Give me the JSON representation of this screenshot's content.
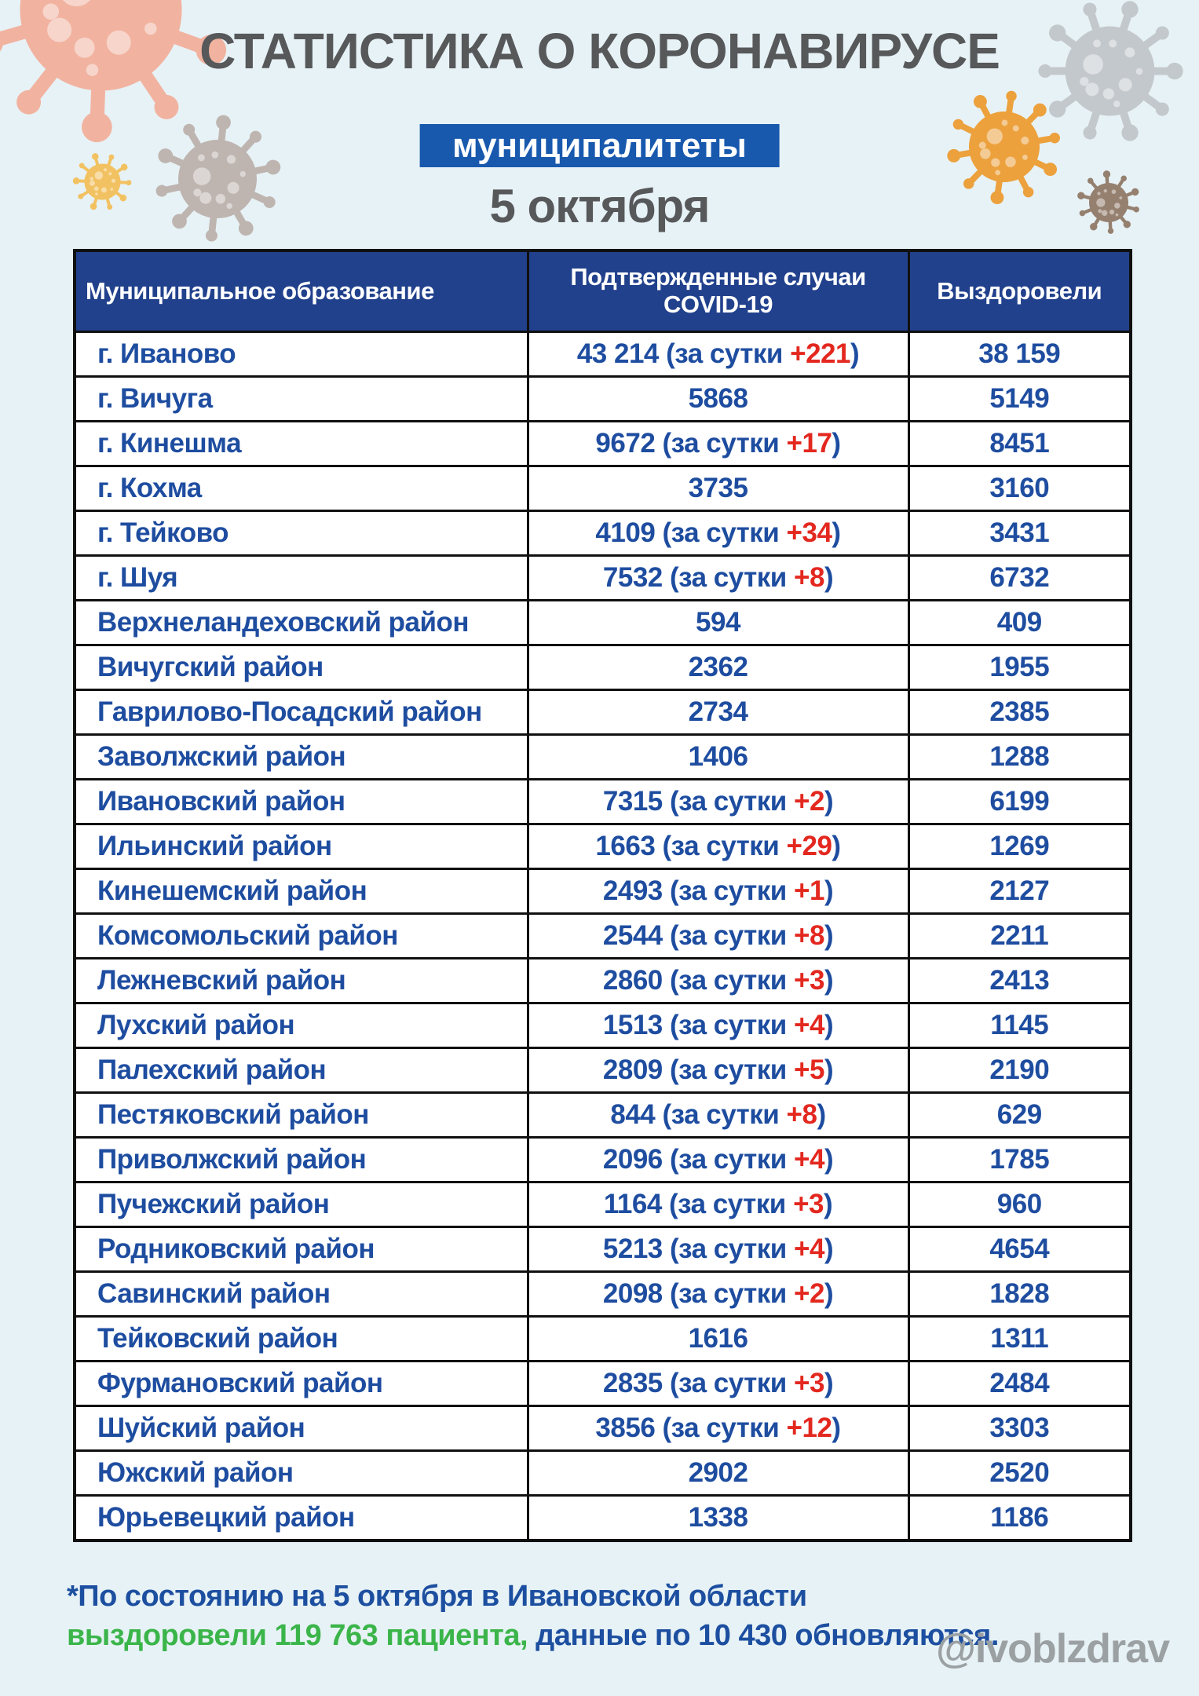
{
  "page": {
    "title": "СТАТИСТИКА О КОРОНАВИРУСЕ",
    "badge": "муниципалитеты",
    "date": "5 октября",
    "handle": "@ivoblzdrav"
  },
  "table": {
    "headers": [
      "Муниципальное образование",
      "Подтвержденные случаи COVID-19",
      "Выздоровели"
    ],
    "daily_label": "за сутки",
    "rows": [
      {
        "name": "г. Иваново",
        "cases": "43 214",
        "delta": "+221",
        "recovered": "38 159"
      },
      {
        "name": "г. Вичуга",
        "cases": "5868",
        "delta": null,
        "recovered": "5149"
      },
      {
        "name": "г. Кинешма",
        "cases": "9672",
        "delta": "+17",
        "recovered": "8451"
      },
      {
        "name": "г. Кохма",
        "cases": "3735",
        "delta": null,
        "recovered": "3160"
      },
      {
        "name": "г. Тейково",
        "cases": "4109",
        "delta": "+34",
        "recovered": "3431"
      },
      {
        "name": "г. Шуя",
        "cases": "7532",
        "delta": "+8",
        "recovered": "6732"
      },
      {
        "name": "Верхнеландеховский район",
        "cases": "594",
        "delta": null,
        "recovered": "409"
      },
      {
        "name": "Вичугский район",
        "cases": "2362",
        "delta": null,
        "recovered": "1955"
      },
      {
        "name": "Гаврилово-Посадский район",
        "cases": "2734",
        "delta": null,
        "recovered": "2385"
      },
      {
        "name": "Заволжский район",
        "cases": "1406",
        "delta": null,
        "recovered": "1288"
      },
      {
        "name": "Ивановский район",
        "cases": "7315",
        "delta": "+2",
        "recovered": "6199"
      },
      {
        "name": "Ильинский район",
        "cases": "1663",
        "delta": "+29",
        "recovered": "1269"
      },
      {
        "name": "Кинешемский район",
        "cases": "2493",
        "delta": "+1",
        "recovered": "2127"
      },
      {
        "name": "Комсомольский район",
        "cases": "2544",
        "delta": "+8",
        "recovered": "2211"
      },
      {
        "name": "Лежневский район",
        "cases": "2860",
        "delta": "+3",
        "recovered": "2413"
      },
      {
        "name": "Лухский район",
        "cases": "1513",
        "delta": "+4",
        "recovered": "1145"
      },
      {
        "name": "Палехский район",
        "cases": "2809",
        "delta": "+5",
        "recovered": "2190"
      },
      {
        "name": "Пестяковский район",
        "cases": "844",
        "delta": "+8",
        "recovered": "629"
      },
      {
        "name": "Приволжский район",
        "cases": "2096",
        "delta": "+4",
        "recovered": "1785"
      },
      {
        "name": "Пучежский район",
        "cases": "1164",
        "delta": "+3",
        "recovered": "960"
      },
      {
        "name": "Родниковский район",
        "cases": "5213",
        "delta": "+4",
        "recovered": "4654"
      },
      {
        "name": "Савинский район",
        "cases": "2098",
        "delta": "+2",
        "recovered": "1828"
      },
      {
        "name": "Тейковский район",
        "cases": "1616",
        "delta": null,
        "recovered": "1311"
      },
      {
        "name": "Фурмановский район",
        "cases": "2835",
        "delta": "+3",
        "recovered": "2484"
      },
      {
        "name": "Шуйский район",
        "cases": "3856",
        "delta": "+12",
        "recovered": "3303"
      },
      {
        "name": "Южский район",
        "cases": "2902",
        "delta": null,
        "recovered": "2520"
      },
      {
        "name": "Юрьевецкий район",
        "cases": "1338",
        "delta": null,
        "recovered": "1186"
      }
    ]
  },
  "footer": {
    "line1": "*По состоянию на 5 октября в Ивановской области",
    "line2_green": "выздоровели 119 763 пациента,",
    "line2_rest": " данные по 10 430 обновляются."
  },
  "colors": {
    "background": "#e7f2f6",
    "title_gray": "#57585a",
    "badge_blue": "#1859ae",
    "header_blue": "#21418c",
    "text_blue": "#1e4da0",
    "delta_red": "#e3281f",
    "green": "#3bb54a",
    "handle_gray": "#9ba0a3",
    "border_black": "#101010"
  },
  "decorations": {
    "virus_salmon": {
      "icon": "virus-icon",
      "color": "#f1b3a0"
    },
    "virus_gray_left": {
      "icon": "virus-icon",
      "color": "#beb5b0"
    },
    "virus_yellow": {
      "icon": "virus-icon",
      "color": "#f2c262"
    },
    "virus_gray_right": {
      "icon": "virus-icon",
      "color": "#c3c8cc"
    },
    "virus_orange": {
      "icon": "virus-icon",
      "color": "#eca13d"
    },
    "virus_brown": {
      "icon": "virus-icon",
      "color": "#95806f"
    }
  },
  "chart_data": {
    "type": "table",
    "title": "СТАТИСТИКА О КОРОНАВИРУСЕ",
    "subtitle": "муниципалитеты",
    "date": "5 октября",
    "columns": [
      "Муниципальное образование",
      "Подтвержденные случаи COVID-19",
      "Выздоровели"
    ],
    "categories": [
      "г. Иваново",
      "г. Вичуга",
      "г. Кинешма",
      "г. Кохма",
      "г. Тейково",
      "г. Шуя",
      "Верхнеландеховский район",
      "Вичугский район",
      "Гаврилово-Посадский район",
      "Заволжский район",
      "Ивановский район",
      "Ильинский район",
      "Кинешемский район",
      "Комсомольский район",
      "Лежневский район",
      "Лухский район",
      "Палехский район",
      "Пестяковский район",
      "Приволжский район",
      "Пучежский район",
      "Родниковский район",
      "Савинский район",
      "Тейковский район",
      "Фурмановский район",
      "Шуйский район",
      "Южский район",
      "Юрьевецкий район"
    ],
    "series": [
      {
        "name": "Подтвержденные случаи COVID-19",
        "values": [
          43214,
          5868,
          9672,
          3735,
          4109,
          7532,
          594,
          2362,
          2734,
          1406,
          7315,
          1663,
          2493,
          2544,
          2860,
          1513,
          2809,
          844,
          2096,
          1164,
          5213,
          2098,
          1616,
          2835,
          3856,
          2902,
          1338
        ]
      },
      {
        "name": "За сутки",
        "values": [
          221,
          null,
          17,
          null,
          34,
          8,
          null,
          null,
          null,
          null,
          2,
          29,
          1,
          8,
          3,
          4,
          5,
          8,
          4,
          3,
          4,
          2,
          null,
          3,
          12,
          null,
          null
        ]
      },
      {
        "name": "Выздоровели",
        "values": [
          38159,
          5149,
          8451,
          3160,
          3431,
          6732,
          409,
          1955,
          2385,
          1288,
          6199,
          1269,
          2127,
          2211,
          2413,
          1145,
          2190,
          629,
          1785,
          960,
          4654,
          1828,
          1311,
          2484,
          3303,
          2520,
          1186
        ]
      }
    ],
    "footnote": "*По состоянию на 5 октября в Ивановской области выздоровели 119 763 пациента, данные по 10 430 обновляются."
  }
}
